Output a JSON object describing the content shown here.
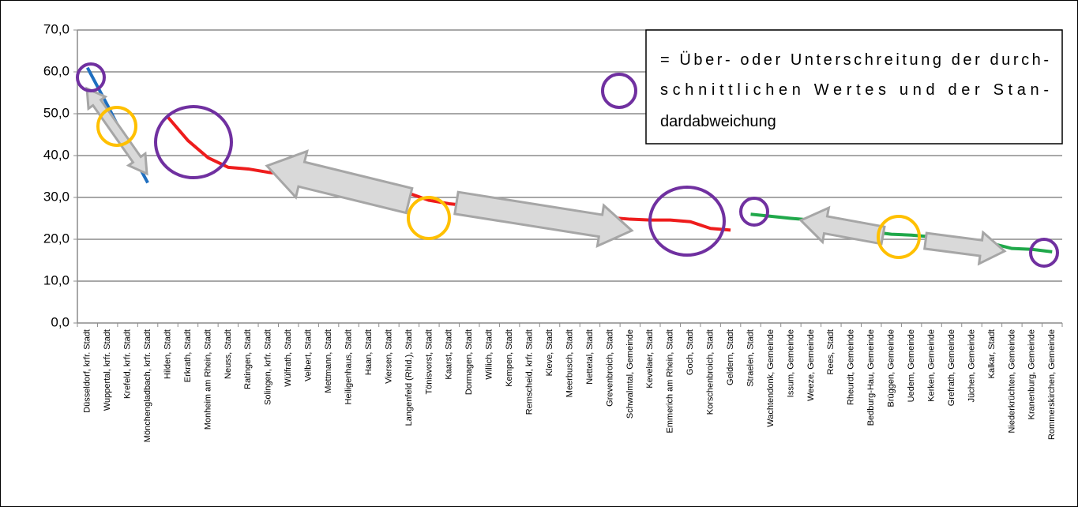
{
  "chart_data": {
    "type": "line",
    "categories": [
      "Düsseldorf, krfr. Stadt",
      "Wuppertal, krfr. Stadt",
      "Krefeld, krfr. Stadt",
      "Mönchengladbach, krfr. Stadt",
      "Hilden, Stadt",
      "Erkrath, Stadt",
      "Monheim am Rhein, Stadt",
      "Neuss, Stadt",
      "Ratingen, Stadt",
      "Solingen, krfr. Stadt",
      "Wülfrath, Stadt",
      "Velbert, Stadt",
      "Mettmann, Stadt",
      "Heiligenhaus, Stadt",
      "Haan, Stadt",
      "Viersen, Stadt",
      "Langenfeld (Rhld.), Stadt",
      "Tönisvorst, Stadt",
      "Kaarst, Stadt",
      "Dormagen, Stadt",
      "Willich, Stadt",
      "Kempen, Stadt",
      "Remscheid, krfr. Stadt",
      "Kleve, Stadt",
      "Meerbusch, Stadt",
      "Nettetal, Stadt",
      "Grevenbroich, Stadt",
      "Schwalmtal, Gemeinde",
      "Kevelaer, Stadt",
      "Emmerich am Rhein, Stadt",
      "Goch, Stadt",
      "Korschenbroich, Stadt",
      "Geldern, Stadt",
      "Straelen, Stadt",
      "Wachtendonk, Gemeinde",
      "Issum, Gemeinde",
      "Weeze, Gemeinde",
      "Rees, Stadt",
      "Rheurdt, Gemeinde",
      "Bedburg-Hau, Gemeinde",
      "Brüggen, Gemeinde",
      "Uedem, Gemeinde",
      "Kerken, Gemeinde",
      "Grefrath, Gemeinde",
      "Jüchen, Gemeinde",
      "Kalkar, Stadt",
      "Niederkrüchten, Gemeinde",
      "Kranenburg, Gemeinde",
      "Rommerskirchen, Gemeinde"
    ],
    "series": [
      {
        "color": "#1f6fc0",
        "values": [
          61.0,
          52.0,
          42.5,
          33.5,
          null,
          null,
          null,
          null,
          null,
          null,
          null,
          null,
          null,
          null,
          null,
          null,
          null,
          null,
          null,
          null,
          null,
          null,
          null,
          null,
          null,
          null,
          null,
          null,
          null,
          null,
          null,
          null,
          null,
          null,
          null,
          null,
          null,
          null,
          null,
          null,
          null,
          null,
          null,
          null,
          null,
          null,
          null,
          null,
          null
        ]
      },
      {
        "color": "#ee1c1c",
        "values": [
          null,
          null,
          null,
          null,
          49.2,
          43.6,
          39.5,
          37.2,
          36.8,
          36.0,
          35.5,
          34.8,
          34.0,
          33.3,
          32.5,
          31.8,
          31.0,
          29.3,
          28.5,
          28.0,
          27.6,
          27.2,
          26.8,
          26.4,
          26.0,
          25.6,
          25.2,
          24.8,
          24.6,
          24.6,
          24.2,
          22.6,
          22.2,
          null,
          null,
          null,
          null,
          null,
          null,
          null,
          null,
          null,
          null,
          null,
          null,
          null,
          null,
          null,
          null
        ]
      },
      {
        "color": "#1fa84a",
        "values": [
          null,
          null,
          null,
          null,
          null,
          null,
          null,
          null,
          null,
          null,
          null,
          null,
          null,
          null,
          null,
          null,
          null,
          null,
          null,
          null,
          null,
          null,
          null,
          null,
          null,
          null,
          null,
          null,
          null,
          null,
          null,
          null,
          null,
          26.0,
          25.5,
          25.0,
          24.6,
          23.5,
          22.5,
          21.8,
          21.2,
          21.0,
          20.6,
          20.2,
          19.8,
          19.0,
          17.8,
          17.6,
          17.0
        ]
      }
    ],
    "ylim": [
      0,
      70
    ],
    "yticks": [
      {
        "value": 0,
        "label": "0,0"
      },
      {
        "value": 10,
        "label": "10,0"
      },
      {
        "value": 20,
        "label": "20,0"
      },
      {
        "value": 30,
        "label": "30,0"
      },
      {
        "value": 40,
        "label": "40,0"
      },
      {
        "value": 50,
        "label": "50,0"
      },
      {
        "value": 60,
        "label": "60,0"
      },
      {
        "value": 70,
        "label": "70,0"
      }
    ],
    "grid": true,
    "annotation": [
      "= Über- oder Unterschreitung der durch-",
      "schnittlichen Wertes und der Stan-",
      "dardabweichung"
    ]
  }
}
